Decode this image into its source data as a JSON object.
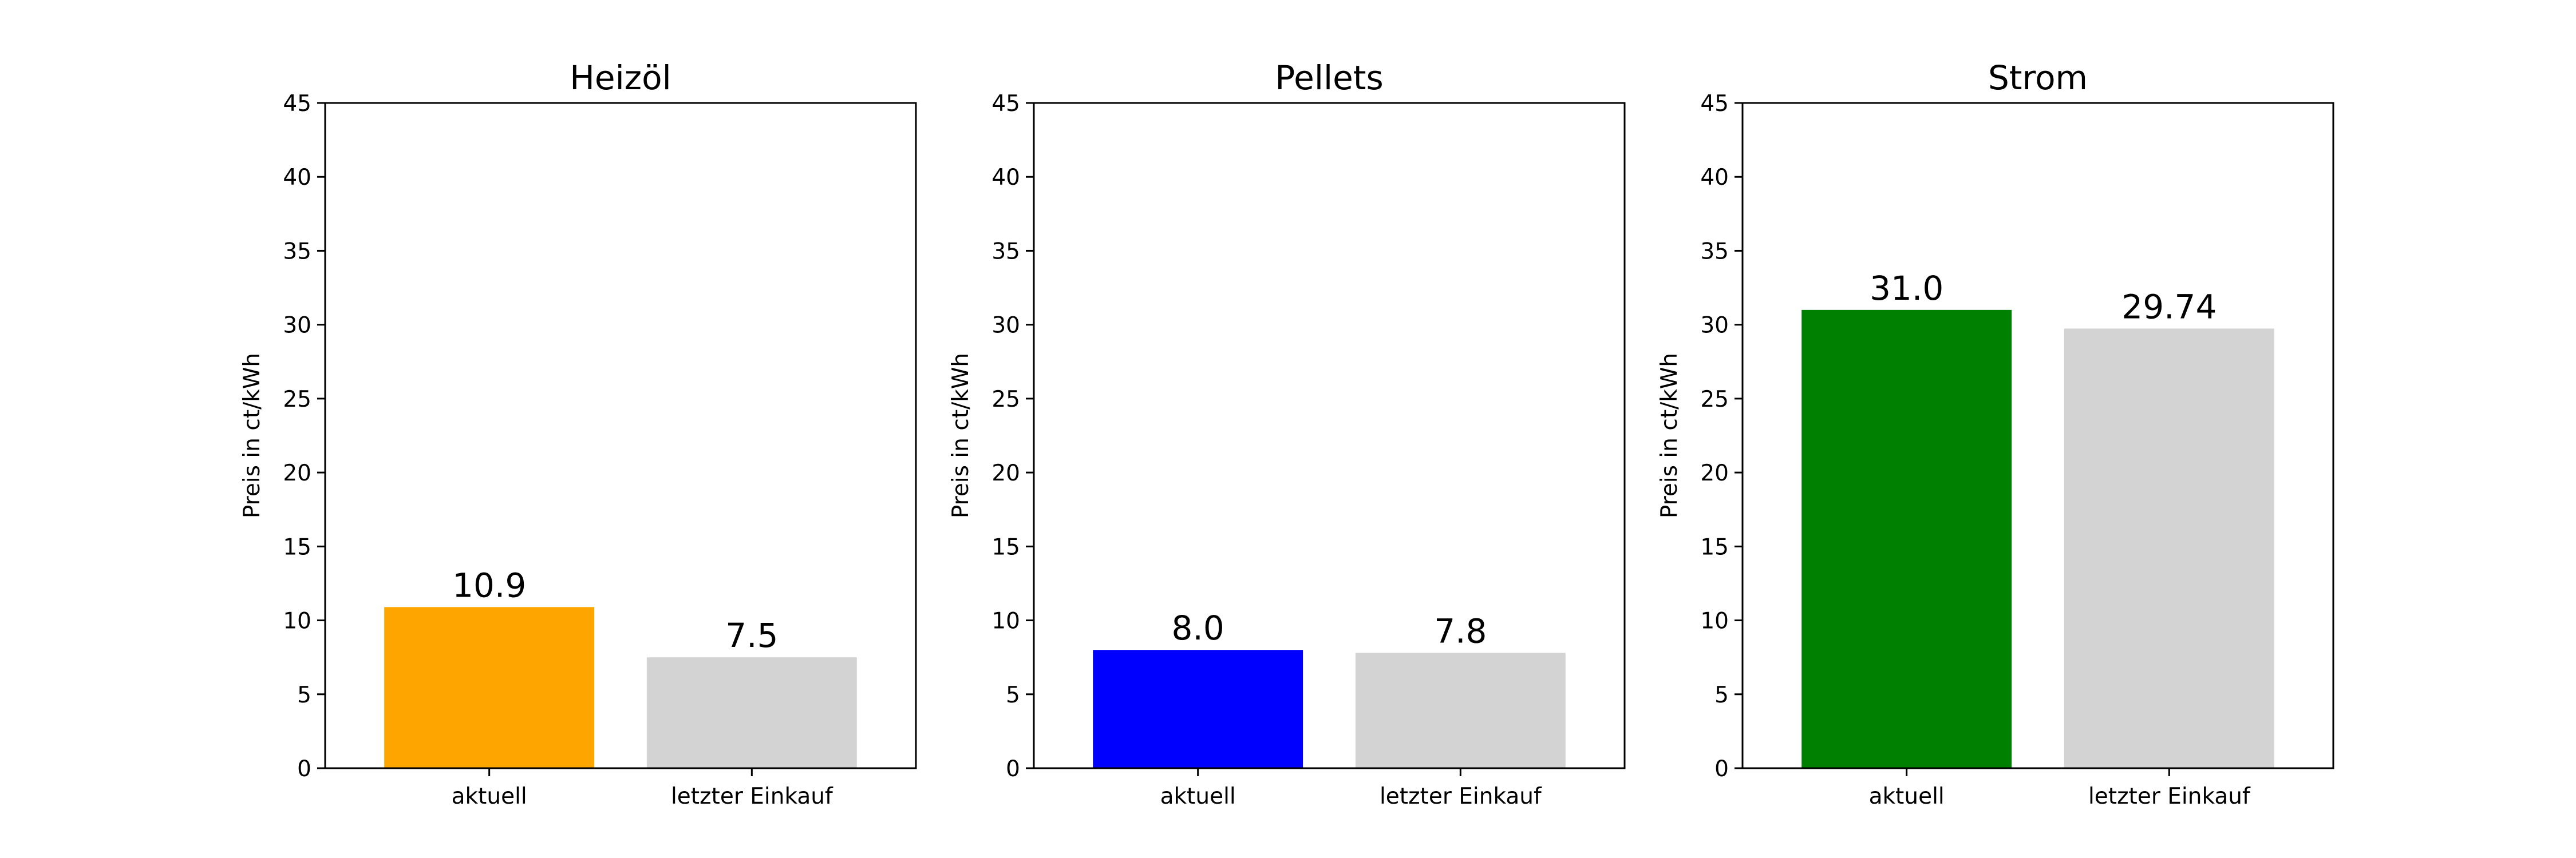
{
  "chart_data": [
    {
      "type": "bar",
      "title": "Heizöl",
      "ylabel": "Preis in ct/kWh",
      "ylim": [
        0,
        45
      ],
      "yticks": [
        0,
        5,
        10,
        15,
        20,
        25,
        30,
        35,
        40,
        45
      ],
      "categories": [
        "aktuell",
        "letzter Einkauf"
      ],
      "values": [
        10.9,
        7.5
      ],
      "value_labels": [
        "10.9",
        "7.5"
      ],
      "colors": [
        "#ffa500",
        "#d3d3d3"
      ]
    },
    {
      "type": "bar",
      "title": "Pellets",
      "ylabel": "Preis in ct/kWh",
      "ylim": [
        0,
        45
      ],
      "yticks": [
        0,
        5,
        10,
        15,
        20,
        25,
        30,
        35,
        40,
        45
      ],
      "categories": [
        "aktuell",
        "letzter Einkauf"
      ],
      "values": [
        8.0,
        7.8
      ],
      "value_labels": [
        "8.0",
        "7.8"
      ],
      "colors": [
        "#0000ff",
        "#d3d3d3"
      ]
    },
    {
      "type": "bar",
      "title": "Strom",
      "ylabel": "Preis in ct/kWh",
      "ylim": [
        0,
        45
      ],
      "yticks": [
        0,
        5,
        10,
        15,
        20,
        25,
        30,
        35,
        40,
        45
      ],
      "categories": [
        "aktuell",
        "letzter Einkauf"
      ],
      "values": [
        31.0,
        29.74
      ],
      "value_labels": [
        "31.0",
        "29.74"
      ],
      "colors": [
        "#008000",
        "#d3d3d3"
      ]
    }
  ]
}
